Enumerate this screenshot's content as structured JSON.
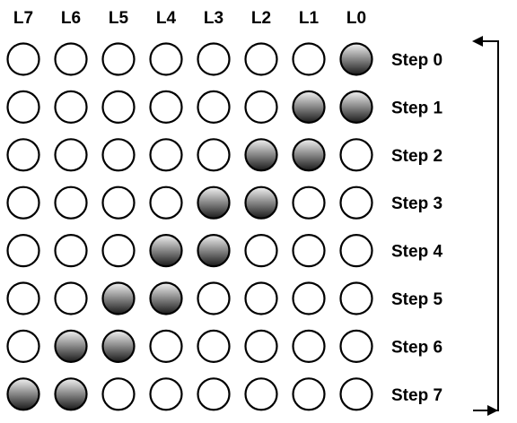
{
  "columns": [
    "L7",
    "L6",
    "L5",
    "L4",
    "L3",
    "L2",
    "L1",
    "L0"
  ],
  "steps": [
    {
      "label": "Step 0",
      "leds": [
        0,
        0,
        0,
        0,
        0,
        0,
        0,
        1
      ]
    },
    {
      "label": "Step 1",
      "leds": [
        0,
        0,
        0,
        0,
        0,
        0,
        1,
        1
      ]
    },
    {
      "label": "Step 2",
      "leds": [
        0,
        0,
        0,
        0,
        0,
        1,
        1,
        0
      ]
    },
    {
      "label": "Step 3",
      "leds": [
        0,
        0,
        0,
        0,
        1,
        1,
        0,
        0
      ]
    },
    {
      "label": "Step 4",
      "leds": [
        0,
        0,
        0,
        1,
        1,
        0,
        0,
        0
      ]
    },
    {
      "label": "Step 5",
      "leds": [
        0,
        0,
        1,
        1,
        0,
        0,
        0,
        0
      ]
    },
    {
      "label": "Step 6",
      "leds": [
        0,
        1,
        1,
        0,
        0,
        0,
        0,
        0
      ]
    },
    {
      "label": "Step 7",
      "leds": [
        1,
        1,
        0,
        0,
        0,
        0,
        0,
        0
      ]
    }
  ],
  "colors": {
    "led_on_top": "#f2f2f2",
    "led_on_bottom": "#1a1a1a",
    "led_off": "#ffffff",
    "stroke": "#000000"
  },
  "loop_arrow": "returns from Step 7 to Step 0"
}
